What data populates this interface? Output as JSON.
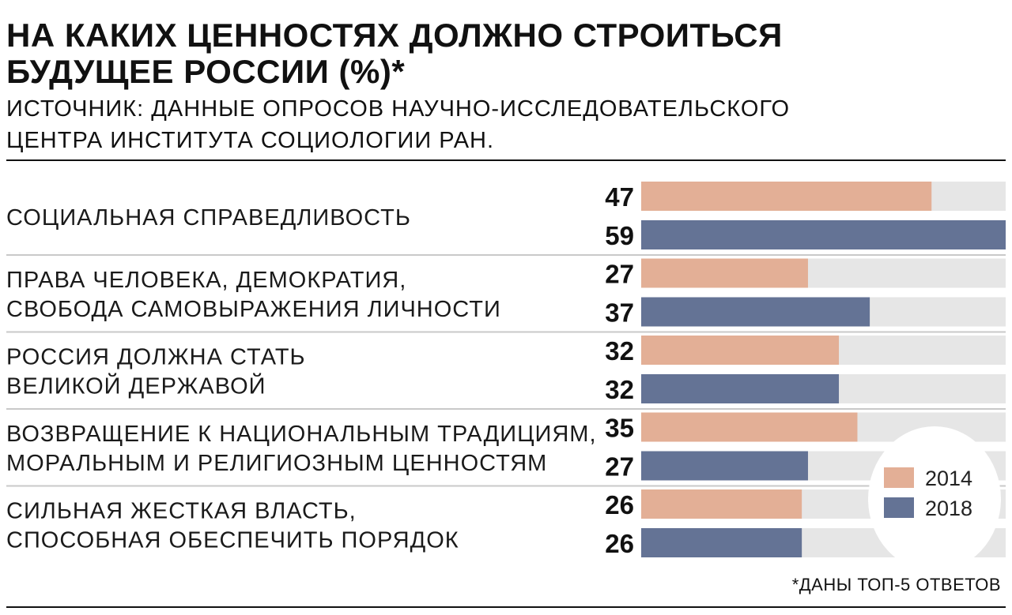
{
  "colors": {
    "y2014": "#e3af96",
    "y2018": "#647395",
    "track": "#e6e6e6",
    "divider": "#c9c9c9"
  },
  "chart_data": {
    "type": "bar",
    "orientation": "horizontal",
    "title_lines": [
      "НА КАКИХ ЦЕННОСТЯХ ДОЛЖНО СТРОИТЬСЯ",
      "БУДУЩЕЕ РОССИИ (%)*"
    ],
    "subtitle_lines": [
      "ИСТОЧНИК: ДАННЫЕ ОПРОСОВ НАУЧНО-ИССЛЕДОВАТЕЛЬСКОГО",
      "ЦЕНТРА ИНСТИТУТА СОЦИОЛОГИИ РАН."
    ],
    "categories": [
      [
        "СОЦИАЛЬНАЯ СПРАВЕДЛИВОСТЬ"
      ],
      [
        "ПРАВА ЧЕЛОВЕКА, ДЕМОКРАТИЯ,",
        "СВОБОДА САМОВЫРАЖЕНИЯ ЛИЧНОСТИ"
      ],
      [
        "РОССИЯ ДОЛЖНА СТАТЬ",
        "ВЕЛИКОЙ ДЕРЖАВОЙ"
      ],
      [
        "ВОЗВРАЩЕНИЕ К НАЦИОНАЛЬНЫМ ТРАДИЦИЯМ,",
        "МОРАЛЬНЫМ И РЕЛИГИОЗНЫМ ЦЕННОСТЯМ"
      ],
      [
        "СИЛЬНАЯ ЖЕСТКАЯ ВЛАСТЬ,",
        "СПОСОБНАЯ ОБЕСПЕЧИТЬ ПОРЯДОК"
      ]
    ],
    "series": [
      {
        "name": "2014",
        "values": [
          47,
          27,
          32,
          35,
          26
        ]
      },
      {
        "name": "2018",
        "values": [
          59,
          37,
          32,
          27,
          26
        ]
      }
    ],
    "xlim": [
      0,
      59
    ],
    "legend_position": "bottom-right",
    "grid": false
  },
  "footnote": "*ДАНЫ ТОП-5 ОТВЕТОВ"
}
